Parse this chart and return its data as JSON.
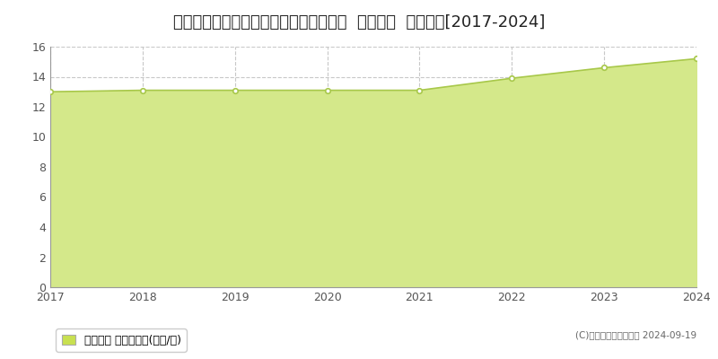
{
  "title": "宮城県富谷市ひより台２丁目３５番１４  基準地価  地価推移[2017-2024]",
  "years": [
    2017,
    2018,
    2019,
    2020,
    2021,
    2022,
    2023,
    2024
  ],
  "values": [
    13.0,
    13.1,
    13.1,
    13.1,
    13.1,
    13.9,
    14.6,
    15.2
  ],
  "ylim": [
    0,
    16
  ],
  "yticks": [
    0,
    2,
    4,
    6,
    8,
    10,
    12,
    14,
    16
  ],
  "line_color": "#a8c84a",
  "fill_color": "#d4e88a",
  "marker_color": "#ffffff",
  "marker_edge_color": "#a8c84a",
  "grid_color": "#c8c8c8",
  "background_color": "#ffffff",
  "legend_label": "基準地価 平均坪単価(万円/坪)",
  "legend_marker_color": "#c8e050",
  "copyright_text": "(C)土地価格ドットコム 2024-09-19",
  "title_fontsize": 13,
  "tick_fontsize": 9,
  "legend_fontsize": 9
}
